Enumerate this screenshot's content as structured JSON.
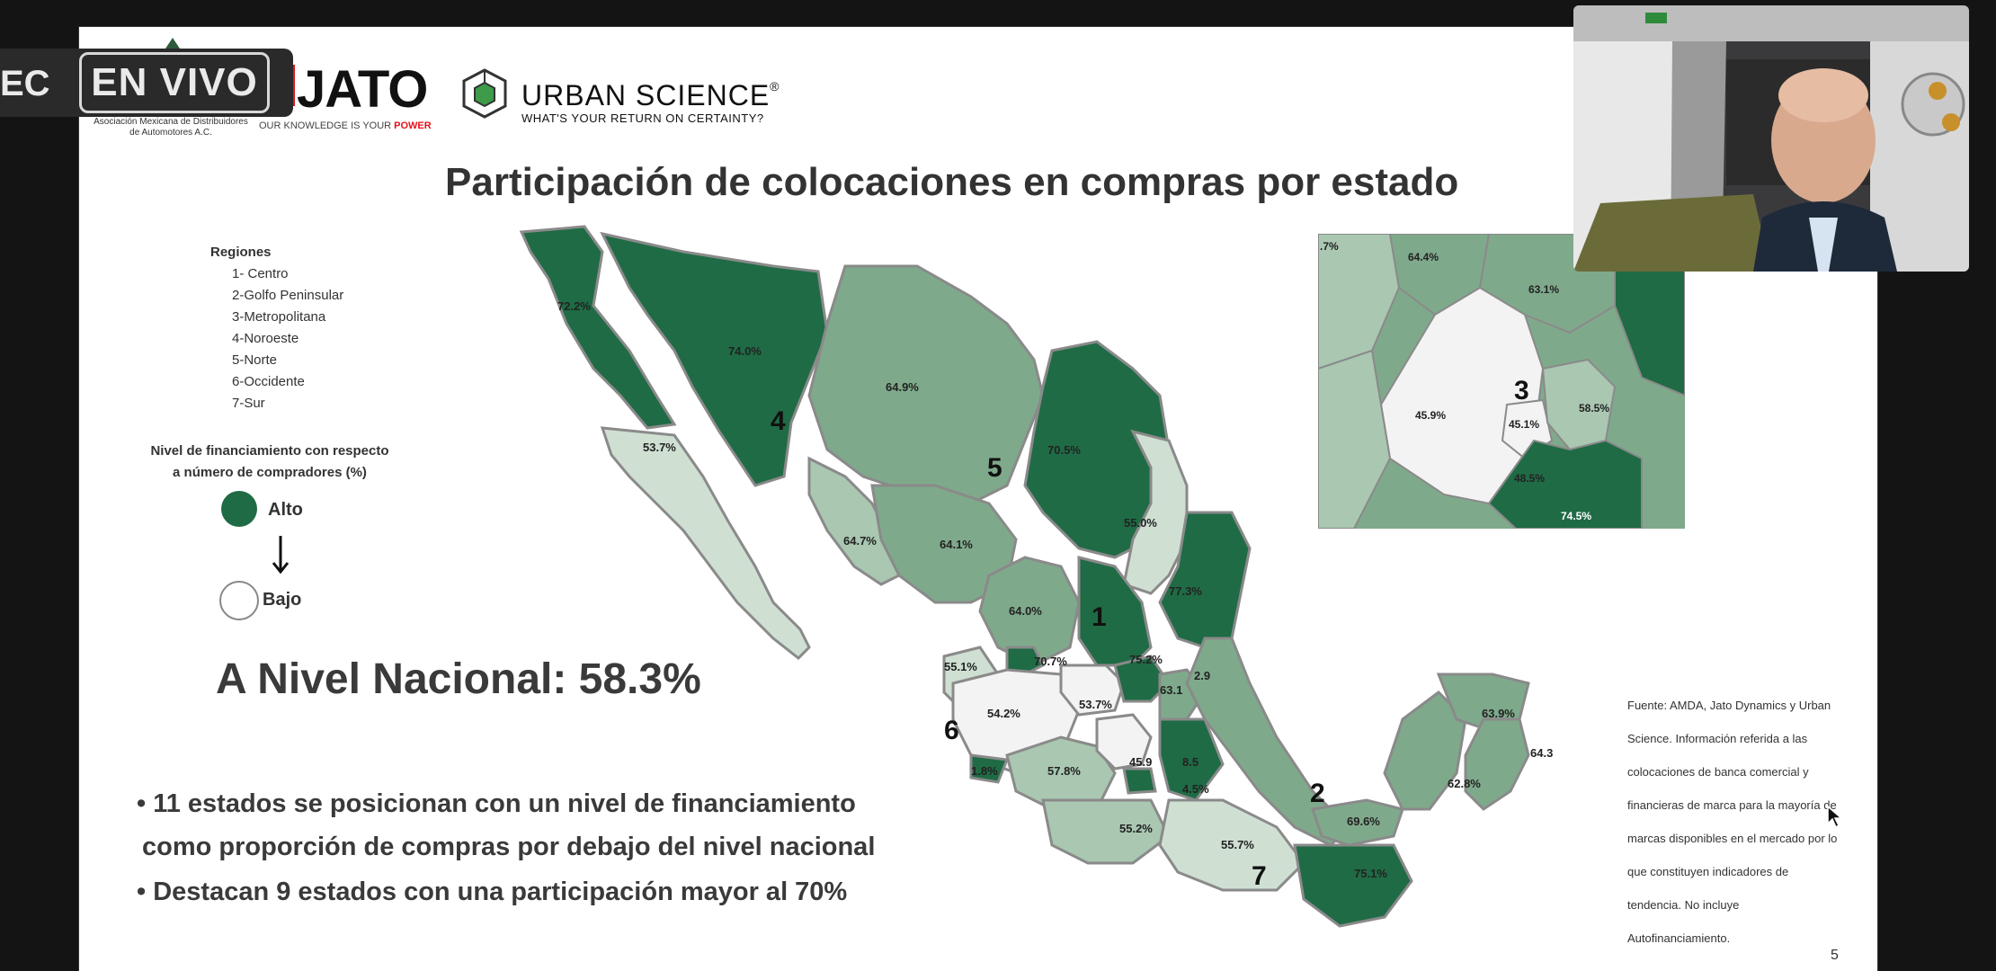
{
  "live": {
    "rec_fragment": "EC",
    "label": "EN VIVO"
  },
  "logos": {
    "amda_text": "Asociación Mexicana de Distribuidores de Automotores A.C.",
    "jato_name": "JATO",
    "jato_tagline_start": "OUR KNOWLEDGE IS YOUR ",
    "jato_tagline_end": "POWER",
    "us_name": "URBAN SCIENCE",
    "us_reg": "®",
    "us_tagline": "WHAT'S YOUR RETURN ON CERTAINTY?"
  },
  "slide": {
    "title": "Participación de colocaciones en compras por estado",
    "regions_title": "Regiones",
    "regions": [
      "1- Centro",
      "2-Golfo Peninsular",
      "3-Metropolitana",
      "4-Noroeste",
      "5-Norte",
      "6-Occidente",
      "7-Sur"
    ],
    "financing_title_line1": "Nivel de financiamiento con respecto",
    "financing_title_line2": "a número de compradores (%)",
    "legend_high": "Alto",
    "legend_low": "Bajo",
    "national": "A Nivel Nacional: 58.3%",
    "bullet1_line1": "• 11 estados se posicionan con un nivel de financiamiento",
    "bullet1_line2": " como proporción de compras por debajo del nivel nacional",
    "bullet2": "• Destacan 9 estados con una participación mayor al 70%",
    "source_lines": [
      "Fuente: AMDA, Jato Dynamics y Urban",
      "Science. Información referida a las",
      "colocaciones de banca comercial y",
      "financieras de marca para la mayoría de",
      "marcas disponibles en el mercado por lo",
      "que constituyen indicadores de",
      "tendencia. No incluye",
      "Autofinanciamiento."
    ],
    "page_number": "5"
  },
  "colors": {
    "high": "#1f6b45",
    "mid": "#7fa98b",
    "midlight": "#a9c7b1",
    "light": "#cfe0d3",
    "white": "#f3f3f3",
    "border": "#8a8a8a"
  },
  "map": {
    "region_numbers": [
      "1",
      "2",
      "3",
      "4",
      "5",
      "6",
      "7"
    ],
    "state_labels": [
      "72.2%",
      "74.0%",
      "64.9%",
      "53.7%",
      "70.5%",
      "64.7%",
      "64.1%",
      "55.0%",
      "77.3%",
      "64.0%",
      "55.1%",
      "70.7%",
      "75.2%",
      "2.9",
      "54.2%",
      "53.7%",
      "63.1",
      "1.8%",
      "57.8%",
      "45.9",
      "8.5",
      "4.5%",
      "55.2%",
      "55.7%",
      "69.6%",
      "75.1%",
      "63.9%",
      "64.3",
      "62.8%"
    ],
    "inset_labels": [
      ".7%",
      "64.4%",
      "63.1%",
      "45.9%",
      "45.1%",
      "58.5%",
      "48.5%",
      "74.5%"
    ]
  }
}
